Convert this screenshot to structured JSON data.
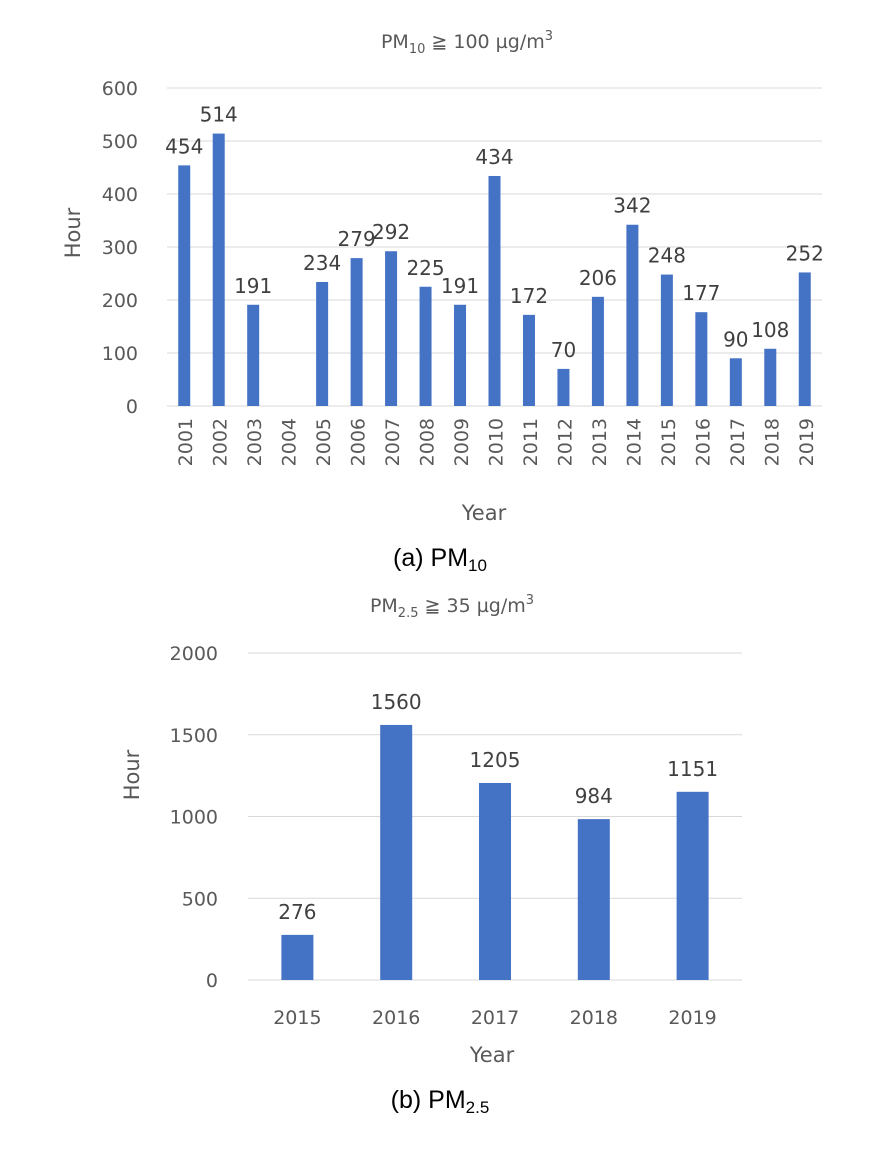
{
  "colors": {
    "bar": "#4472c4",
    "grid": "#d9d9d9",
    "text": "#595959"
  },
  "chart_data": [
    {
      "type": "bar",
      "title_main": "PM",
      "title_sub": "10",
      "title_rest": " ≧ 100 µg/m",
      "title_sup": "3",
      "xlabel": "Year",
      "ylabel": "Hour",
      "ylim": [
        0,
        600
      ],
      "yticks": [
        0,
        100,
        200,
        300,
        400,
        500,
        600
      ],
      "categories": [
        "2001",
        "2002",
        "2003",
        "2004",
        "2005",
        "2006",
        "2007",
        "2008",
        "2009",
        "2010",
        "2011",
        "2012",
        "2013",
        "2014",
        "2015",
        "2016",
        "2017",
        "2018",
        "2019"
      ],
      "values": [
        454,
        514,
        191,
        null,
        234,
        279,
        292,
        225,
        191,
        434,
        172,
        70,
        206,
        342,
        248,
        177,
        90,
        108,
        252
      ],
      "grid": true,
      "caption_main": "(a)  PM",
      "caption_sub": "10"
    },
    {
      "type": "bar",
      "title_main": "PM",
      "title_sub": "2.5",
      "title_rest": " ≧ 35 µg/m",
      "title_sup": "3",
      "xlabel": "Year",
      "ylabel": "Hour",
      "ylim": [
        0,
        2000
      ],
      "yticks": [
        0,
        500,
        1000,
        1500,
        2000
      ],
      "categories": [
        "2015",
        "2016",
        "2017",
        "2018",
        "2019"
      ],
      "values": [
        276,
        1560,
        1205,
        984,
        1151
      ],
      "grid": true,
      "caption_main": "(b)  PM",
      "caption_sub": "2.5"
    }
  ]
}
